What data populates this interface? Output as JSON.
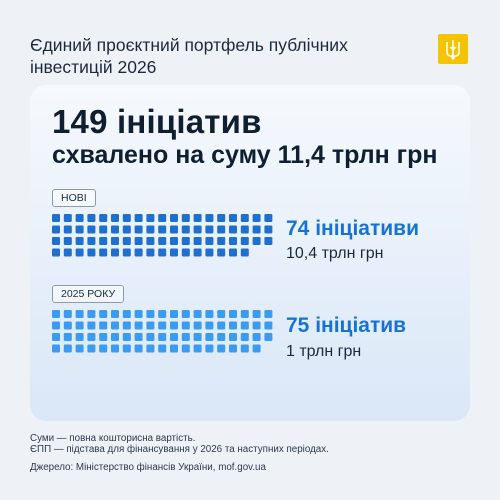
{
  "header": {
    "title": "Єдиний проєктний портфель публічних інвестицій 2026"
  },
  "logo": {
    "icon": "trident-icon",
    "color": "#f5c400"
  },
  "summary": {
    "headline": "149 ініціатив",
    "subheadline": "схвалено на суму 11,4 трлн грн"
  },
  "chart_data": {
    "type": "unit",
    "groups": [
      {
        "label": "НОВІ",
        "count": 74,
        "count_label": "74 ініціативи",
        "amount_label": "10,4 трлн грн",
        "color": "#1f6fd1"
      },
      {
        "label": "2025 РОКУ",
        "count": 75,
        "count_label": "75 ініціатив",
        "amount_label": "1 трлн грн",
        "color": "#3a9bf0"
      }
    ]
  },
  "footnotes": {
    "line1": "Суми — повна кошторисна вартість.",
    "line2": "ЄПП — підстава для фінансування у 2026 та наступних періодах.",
    "source": "Джерело: Міністерство фінансів України, mof.gov.ua"
  }
}
